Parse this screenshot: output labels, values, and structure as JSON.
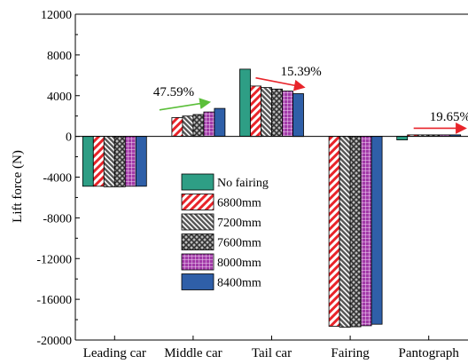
{
  "chart_data": {
    "type": "bar",
    "ylabel": "Lift force (N)",
    "xlabel": "",
    "ylim": [
      -20000,
      12000
    ],
    "yticks": [
      -20000,
      -16000,
      -12000,
      -8000,
      -4000,
      0,
      4000,
      8000,
      12000
    ],
    "categories": [
      "Leading car",
      "Middle car",
      "Tail car",
      "Fairing",
      "Pantograph"
    ],
    "series": [
      {
        "name": "No fairing",
        "color": "#2e9e85",
        "pattern": "solid",
        "values": [
          -4900,
          0,
          6600,
          0,
          -350
        ]
      },
      {
        "name": "6800mm",
        "color": "#e8242a",
        "pattern": "diag",
        "values": [
          -4900,
          1850,
          4950,
          -18650,
          150
        ]
      },
      {
        "name": "7200mm",
        "color": "#555555",
        "pattern": "diag-dense",
        "values": [
          -4950,
          2000,
          4800,
          -18750,
          150
        ]
      },
      {
        "name": "7600mm",
        "color": "#444444",
        "pattern": "cross",
        "values": [
          -4950,
          2150,
          4650,
          -18700,
          150
        ]
      },
      {
        "name": "8000mm",
        "color": "#a23aa8",
        "pattern": "grid",
        "values": [
          -4900,
          2400,
          4450,
          -18600,
          150
        ]
      },
      {
        "name": "8400mm",
        "color": "#2f5fa8",
        "pattern": "solid",
        "values": [
          -4900,
          2750,
          4200,
          -18450,
          150
        ]
      }
    ],
    "annotations": [
      {
        "text": "47.59%",
        "category_index": 1,
        "arrow_color": "#5bbf3a",
        "direction": "up"
      },
      {
        "text": "15.39%",
        "category_index": 2,
        "arrow_color": "#e8242a",
        "direction": "down"
      },
      {
        "text": "19.65%",
        "category_index": 4,
        "arrow_color": "#e8242a",
        "direction": "flat"
      }
    ],
    "legend_position": "center-left",
    "grid": false
  }
}
